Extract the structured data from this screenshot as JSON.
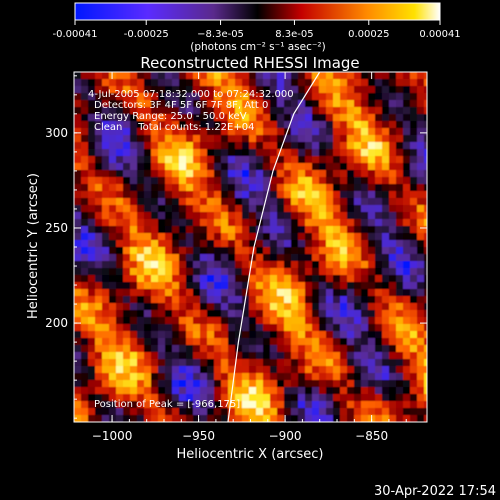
{
  "chart_data": {
    "type": "heatmap",
    "title": "Reconstructed RHESSI Image",
    "xlabel": "Heliocentric X (arcsec)",
    "ylabel": "Heliocentric Y (arcsec)",
    "xlim": [
      -1022,
      -818
    ],
    "ylim": [
      148,
      332
    ],
    "x_ticks": [
      -1000,
      -950,
      -900,
      -850
    ],
    "x_tick_labels": [
      "−1000",
      "−950",
      "−900",
      "−850"
    ],
    "y_ticks": [
      200,
      250,
      300
    ],
    "y_tick_labels": [
      "200",
      "250",
      "300"
    ],
    "colorbar": {
      "colormap": "blue-purple-black-red-orange-yellow-white",
      "range": [
        -0.00041,
        0.00041
      ],
      "tick_values": [
        -0.00041,
        -0.00025,
        -8.3e-05,
        8.3e-05,
        0.00025,
        0.00041
      ],
      "tick_labels": [
        "-0.00041",
        "-0.00025",
        "−8.3e-05",
        "8.3e-05",
        "0.00025",
        "0.00041"
      ],
      "unit_label": "(photons cm⁻² s⁻¹ asec⁻²)"
    },
    "annotations": [
      "4-Jul-2005 07:18:32.000 to 07:24:32.000",
      "Detectors: 3F 4F 5F 6F 7F 8F, Att 0",
      "Energy Range: 25.0 - 50.0 keV",
      "Clean     Total counts: 1.22E+04"
    ],
    "peak_label": "Position of Peak = [-966,175]",
    "limb_curve": [
      [
        -933,
        148
      ],
      [
        -927,
        190
      ],
      [
        -918,
        240
      ],
      [
        -907,
        280
      ],
      [
        -895,
        310
      ],
      [
        -880,
        332
      ]
    ]
  },
  "footer": {
    "timestamp": "30-Apr-2022 17:54"
  }
}
